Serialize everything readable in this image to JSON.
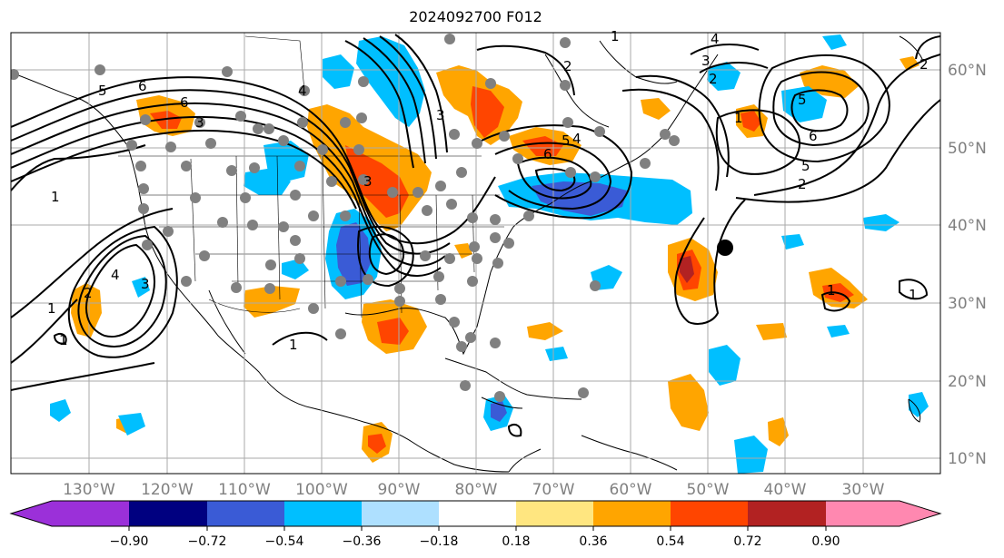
{
  "title": "2024092700 F012",
  "lat_labels": [
    "60°N",
    "50°N",
    "40°N",
    "30°N",
    "20°N",
    "10°N"
  ],
  "lon_labels": [
    "130°W",
    "120°W",
    "110°W",
    "100°W",
    "90°W",
    "80°W",
    "70°W",
    "60°W",
    "50°W",
    "40°W",
    "30°W"
  ],
  "colorbar": {
    "tick_labels": [
      "−0.90",
      "−0.72",
      "−0.54",
      "−0.36",
      "−0.18",
      "0.18",
      "0.36",
      "0.54",
      "0.72",
      "0.90"
    ],
    "colors": [
      "#9b30d9",
      "#000080",
      "#3a5bd6",
      "#00bfff",
      "#aee0ff",
      "#ffffff",
      "#ffe680",
      "#ffa500",
      "#ff4500",
      "#b22222",
      "#ff88b0"
    ]
  },
  "contour_labels": [
    "1",
    "5",
    "6",
    "6",
    "3",
    "4",
    "3",
    "1",
    "2",
    "4",
    "3",
    "1",
    "5",
    "6",
    "4",
    "3",
    "1",
    "2",
    "3",
    "4",
    "5",
    "6",
    "2",
    "5",
    "2",
    "1",
    "1",
    "1",
    "2",
    "1"
  ],
  "colors": {
    "grid": "#aaaaaa",
    "contour": "#000000",
    "station": "#808080",
    "marker": "#000000",
    "pos_weak": "#ffa500",
    "pos_mid": "#ff4500",
    "pos_strong": "#b22222",
    "neg_weak": "#00bfff",
    "neg_mid": "#3a5bd6"
  }
}
